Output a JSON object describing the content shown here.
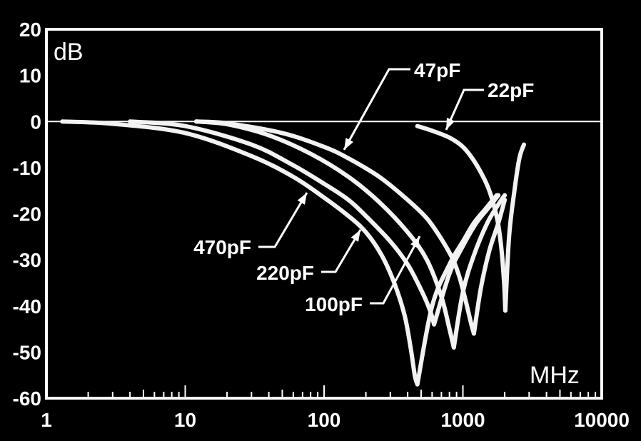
{
  "chart_data": {
    "type": "line",
    "title": "",
    "xlabel": "MHz",
    "ylabel": "dB",
    "x_scale": "log",
    "xlim": [
      1,
      10000
    ],
    "ylim": [
      -60,
      20
    ],
    "x_ticks": [
      "1",
      "10",
      "100",
      "1000",
      "10000"
    ],
    "y_ticks": [
      "20",
      "10",
      "0",
      "-10",
      "-20",
      "-30",
      "-40",
      "-50",
      "-60"
    ],
    "reference_line_y": 0,
    "grid": false,
    "series": [
      {
        "name": "470pF",
        "x": [
          1.3,
          3,
          10,
          30,
          60,
          100,
          150,
          200,
          260,
          320,
          380,
          420,
          450,
          470
        ],
        "y": [
          0,
          -0.5,
          -2.5,
          -7.5,
          -12,
          -16.5,
          -20.5,
          -24,
          -29,
          -35,
          -42,
          -49,
          -55,
          -57
        ]
      },
      {
        "name": "220pF",
        "x": [
          4,
          10,
          30,
          60,
          100,
          150,
          200,
          300,
          400,
          500,
          580,
          620
        ],
        "y": [
          0,
          -1,
          -5,
          -9.5,
          -13.5,
          -17,
          -20.5,
          -26,
          -31,
          -36.5,
          -41,
          -44
        ]
      },
      {
        "name": "100pF",
        "x": [
          12,
          20,
          40,
          80,
          150,
          250,
          400,
          550,
          700,
          800,
          860
        ],
        "y": [
          0,
          -0.6,
          -3,
          -7,
          -12,
          -17.5,
          -24,
          -30,
          -38,
          -45,
          -49
        ]
      },
      {
        "name": "47pF",
        "x": [
          12,
          20,
          50,
          100,
          150,
          250,
          400,
          550,
          700,
          850,
          950,
          1050,
          1150,
          1200
        ],
        "y": [
          0,
          -0.4,
          -2.5,
          -5.5,
          -8,
          -12,
          -17,
          -21,
          -25.5,
          -30,
          -34,
          -39,
          -44,
          -46
        ]
      },
      {
        "name": "22pF",
        "x": [
          470,
          600,
          800,
          1000,
          1200,
          1400,
          1550,
          1700,
          1800,
          1900,
          1980,
          2020
        ],
        "y": [
          -1,
          -2,
          -3.5,
          -5.5,
          -8.5,
          -12,
          -15,
          -19,
          -22.5,
          -28,
          -35,
          -41
        ]
      }
    ],
    "resonance_branches": [
      {
        "name": "470pF",
        "x": [
          470,
          600,
          800,
          1000,
          1200,
          1450,
          1750
        ],
        "y": [
          -57,
          -40,
          -31,
          -26,
          -22,
          -19,
          -16
        ]
      },
      {
        "name": "220pF",
        "x": [
          620,
          800,
          1000,
          1250,
          1550,
          1800
        ],
        "y": [
          -44,
          -33,
          -27,
          -22,
          -18.5,
          -16
        ]
      },
      {
        "name": "100pF",
        "x": [
          860,
          1000,
          1200,
          1500,
          1800,
          2000
        ],
        "y": [
          -49,
          -37,
          -29,
          -22,
          -18,
          -16
        ]
      },
      {
        "name": "47pF",
        "x": [
          1200,
          1350,
          1550,
          1800,
          2000
        ],
        "y": [
          -46,
          -36,
          -28,
          -22,
          -17
        ]
      },
      {
        "name": "22pF",
        "x": [
          2020,
          2150,
          2350,
          2550,
          2750
        ],
        "y": [
          -41,
          -25,
          -15,
          -8,
          -5
        ]
      }
    ]
  }
}
